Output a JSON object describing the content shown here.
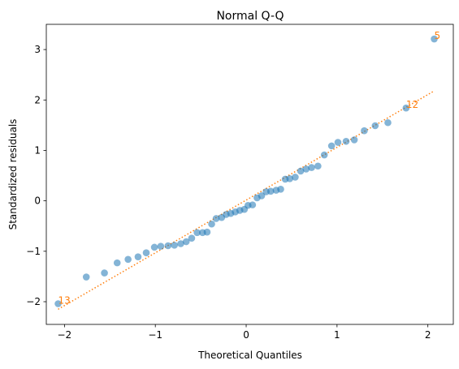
{
  "chart_data": {
    "type": "scatter",
    "title": "Normal Q-Q",
    "xlabel": "Theoretical Quantiles",
    "ylabel": "Standardized residuals",
    "xlim": [
      -2.2,
      2.28
    ],
    "ylim": [
      -2.45,
      3.5
    ],
    "xticks": [
      -2,
      -1,
      0,
      1,
      2
    ],
    "yticks": [
      -2,
      -1,
      0,
      1,
      2,
      3
    ],
    "grid": false,
    "colors": {
      "points": "#1f77b4",
      "reference_line": "#ff7f0e",
      "annotations": "#ff7f0e"
    },
    "reference_line": {
      "style": "dotted",
      "x": [
        -2.07,
        2.07
      ],
      "y": [
        -2.15,
        2.18
      ]
    },
    "points": [
      {
        "x": -2.07,
        "y": -2.04
      },
      {
        "x": -1.76,
        "y": -1.51
      },
      {
        "x": -1.56,
        "y": -1.43
      },
      {
        "x": -1.42,
        "y": -1.23
      },
      {
        "x": -1.3,
        "y": -1.16
      },
      {
        "x": -1.19,
        "y": -1.11
      },
      {
        "x": -1.1,
        "y": -1.03
      },
      {
        "x": -1.01,
        "y": -0.92
      },
      {
        "x": -0.94,
        "y": -0.9
      },
      {
        "x": -0.86,
        "y": -0.89
      },
      {
        "x": -0.79,
        "y": -0.88
      },
      {
        "x": -0.72,
        "y": -0.85
      },
      {
        "x": -0.66,
        "y": -0.81
      },
      {
        "x": -0.6,
        "y": -0.74
      },
      {
        "x": -0.54,
        "y": -0.63
      },
      {
        "x": -0.48,
        "y": -0.63
      },
      {
        "x": -0.43,
        "y": -0.62
      },
      {
        "x": -0.38,
        "y": -0.46
      },
      {
        "x": -0.33,
        "y": -0.35
      },
      {
        "x": -0.27,
        "y": -0.33
      },
      {
        "x": -0.22,
        "y": -0.27
      },
      {
        "x": -0.17,
        "y": -0.25
      },
      {
        "x": -0.12,
        "y": -0.22
      },
      {
        "x": -0.07,
        "y": -0.19
      },
      {
        "x": -0.02,
        "y": -0.17
      },
      {
        "x": 0.02,
        "y": -0.09
      },
      {
        "x": 0.07,
        "y": -0.08
      },
      {
        "x": 0.12,
        "y": 0.06
      },
      {
        "x": 0.17,
        "y": 0.1
      },
      {
        "x": 0.22,
        "y": 0.18
      },
      {
        "x": 0.27,
        "y": 0.19
      },
      {
        "x": 0.33,
        "y": 0.21
      },
      {
        "x": 0.38,
        "y": 0.23
      },
      {
        "x": 0.43,
        "y": 0.43
      },
      {
        "x": 0.48,
        "y": 0.44
      },
      {
        "x": 0.54,
        "y": 0.47
      },
      {
        "x": 0.6,
        "y": 0.59
      },
      {
        "x": 0.66,
        "y": 0.63
      },
      {
        "x": 0.72,
        "y": 0.66
      },
      {
        "x": 0.79,
        "y": 0.69
      },
      {
        "x": 0.86,
        "y": 0.91
      },
      {
        "x": 0.94,
        "y": 1.09
      },
      {
        "x": 1.01,
        "y": 1.16
      },
      {
        "x": 1.1,
        "y": 1.18
      },
      {
        "x": 1.19,
        "y": 1.21
      },
      {
        "x": 1.3,
        "y": 1.39
      },
      {
        "x": 1.42,
        "y": 1.49
      },
      {
        "x": 1.56,
        "y": 1.55
      },
      {
        "x": 1.76,
        "y": 1.84
      },
      {
        "x": 2.07,
        "y": 3.21
      }
    ],
    "annotations": [
      {
        "text": "5",
        "x": 2.07,
        "y": 3.21
      },
      {
        "text": "12",
        "x": 1.76,
        "y": 1.84
      },
      {
        "text": "13",
        "x": -2.07,
        "y": -2.04
      }
    ]
  }
}
